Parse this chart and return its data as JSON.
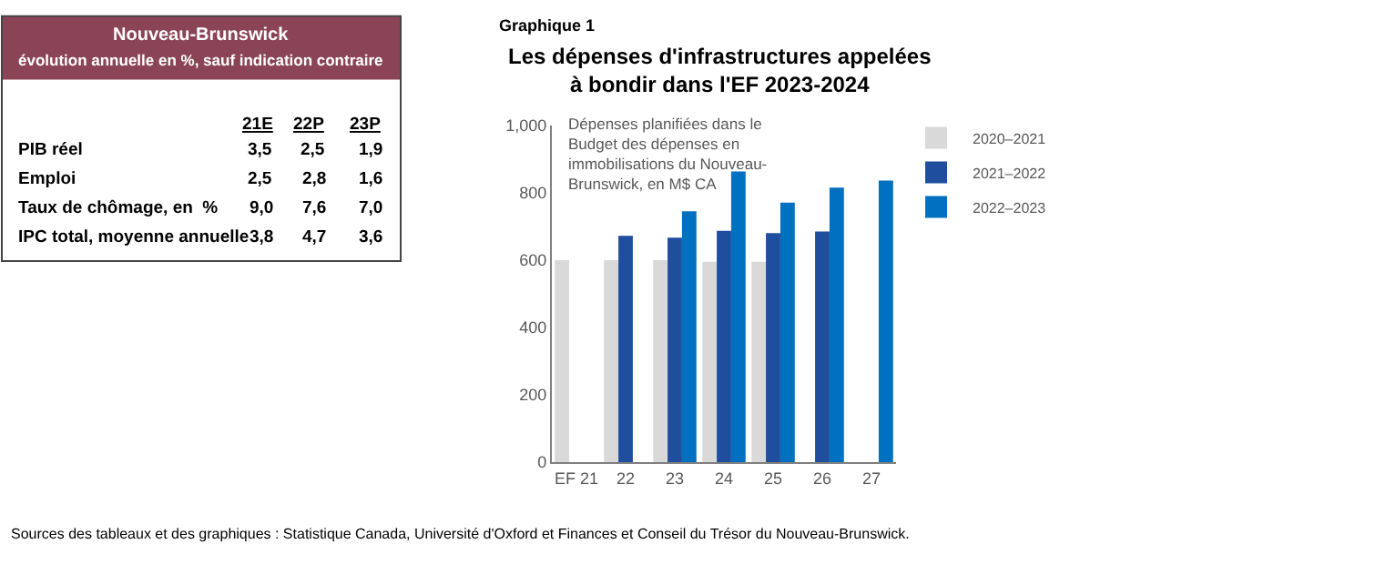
{
  "chart_data": [
    {
      "type": "other",
      "title": "Nouveau-Brunswick",
      "subtitle": "évolution annuelle en %, sauf indication contraire",
      "categories": [
        "21E",
        "22P",
        "23P"
      ],
      "data_labels": true,
      "series": [
        {
          "name": "PIB réel",
          "values": [
            3.5,
            2.5,
            1.9
          ],
          "value_labels": [
            "3,5",
            "2,5",
            "1,9"
          ]
        },
        {
          "name": "Emploi",
          "values": [
            2.5,
            2.8,
            1.6
          ],
          "value_labels": [
            "2,5",
            "2,8",
            "1,6"
          ]
        },
        {
          "name": "Taux de chômage, en  %",
          "values": [
            9.0,
            7.6,
            7.0
          ],
          "value_labels": [
            "9,0",
            "7,6",
            "7,0"
          ]
        },
        {
          "name": "IPC total, moyenne annuelle",
          "values": [
            3.8,
            4.7,
            3.6
          ],
          "value_labels": [
            "3,8",
            "4,7",
            "3,6"
          ]
        }
      ]
    },
    {
      "type": "bar",
      "title": "Les dépenses d'infrastructures appelées à bondir dans l'EF 2023-2024",
      "categories": [
        "EF 21",
        "22",
        "23",
        "24",
        "25",
        "26",
        "27"
      ],
      "series": [
        {
          "name": "2020–2021",
          "color": "#d9d9d9",
          "values": [
            600,
            600,
            600,
            595,
            595,
            null,
            null
          ]
        },
        {
          "name": "2021–2022",
          "color": "#1f4e9c",
          "values": [
            null,
            672,
            667,
            687,
            680,
            685,
            null
          ]
        },
        {
          "name": "2022–2023",
          "color": "#0070c0",
          "values": [
            null,
            null,
            745,
            863,
            771,
            815,
            836
          ]
        }
      ],
      "ylim": [
        0,
        1000
      ],
      "yticks": [
        0,
        200,
        400,
        600,
        800,
        {
          "value": 1000,
          "label": "1,000"
        }
      ],
      "legend": "top right",
      "annotations": [
        "Graphique 1",
        "Dépenses planifiées dans le Budget des dépenses en immobilisations du Nouveau-Brunswick, en M$ CA",
        "Sources des tableaux et des graphiques : Statistique Canada, Université d'Oxford et Finances et Conseil du Trésor du Nouveau-Brunswick."
      ]
    }
  ]
}
